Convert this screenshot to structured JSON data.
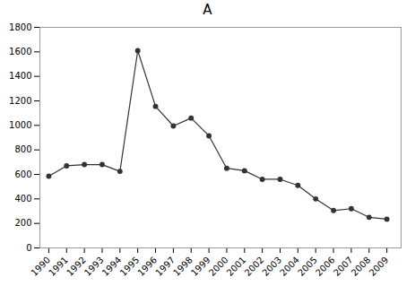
{
  "chart_data": {
    "type": "line",
    "title": "A",
    "x": [
      1990,
      1991,
      1992,
      1993,
      1994,
      1995,
      1996,
      1997,
      1998,
      1999,
      2000,
      2001,
      2002,
      2003,
      2004,
      2005,
      2006,
      2007,
      2008,
      2009
    ],
    "values": [
      585,
      670,
      680,
      680,
      625,
      1610,
      1155,
      995,
      1060,
      915,
      650,
      630,
      560,
      560,
      510,
      400,
      305,
      320,
      250,
      235
    ],
    "xlim": [
      1989.5,
      2009.8
    ],
    "xticks": [
      1990,
      1991,
      1992,
      1993,
      1994,
      1995,
      1996,
      1997,
      1998,
      1999,
      2000,
      2001,
      2002,
      2003,
      2004,
      2005,
      2006,
      2007,
      2008,
      2009
    ],
    "ylim": [
      0,
      1800
    ],
    "yticks": [
      0,
      200,
      400,
      600,
      800,
      1000,
      1200,
      1400,
      1600,
      1800
    ],
    "color": "#333333",
    "marker": "o"
  }
}
